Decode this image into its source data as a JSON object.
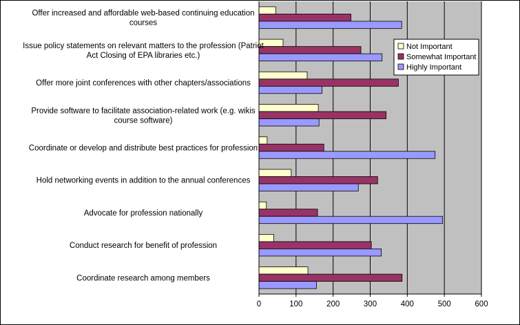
{
  "chart_data": {
    "type": "bar",
    "orientation": "horizontal",
    "title": "",
    "xlabel": "",
    "ylabel": "",
    "xlim": [
      0,
      600
    ],
    "xticks": [
      0,
      100,
      200,
      300,
      400,
      500,
      600
    ],
    "grid": true,
    "legend_position": "top-right",
    "categories": [
      [
        "Offer increased and affordable web-based continuing education",
        "courses"
      ],
      [
        "Issue policy statements on relevant matters to the profession (Patriot",
        "Act Closing of EPA libraries etc.)"
      ],
      [
        "Offer more joint conferences with other chapters/associations"
      ],
      [
        "Provide software to facilitate association-related work (e.g. wikis",
        "course software)"
      ],
      [
        "Coordinate or develop and distribute best practices for profession"
      ],
      [
        "Hold networking events in addition to the annual conferences"
      ],
      [
        "Advocate for profession nationally"
      ],
      [
        "Conduct research for benefit of profession"
      ],
      [
        "Coordinate research among members"
      ]
    ],
    "series": [
      {
        "name": "Not Important",
        "color": "#FFFFCC",
        "values": [
          45,
          65,
          130,
          160,
          22,
          87,
          20,
          40,
          132
        ]
      },
      {
        "name": "Somewhat Important",
        "color": "#993366",
        "values": [
          248,
          275,
          376,
          343,
          175,
          320,
          158,
          303,
          386
        ]
      },
      {
        "name": "Highly Important",
        "color": "#9999FF",
        "values": [
          385,
          332,
          170,
          162,
          475,
          268,
          495,
          330,
          155
        ]
      }
    ]
  }
}
